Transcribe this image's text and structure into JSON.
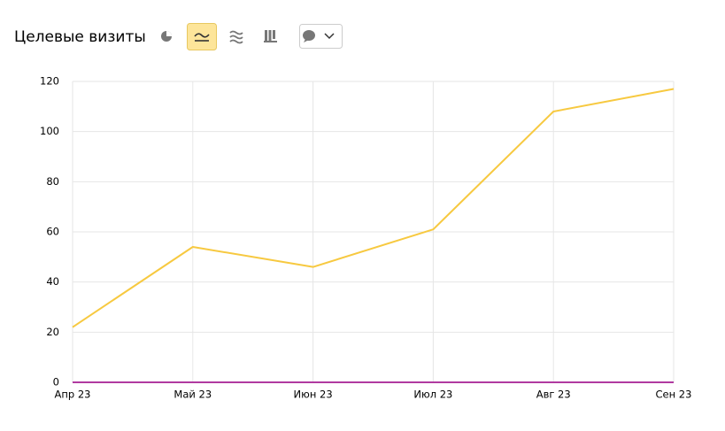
{
  "chart_data": {
    "type": "line",
    "title": "Целевые визиты",
    "categories": [
      "Апр 23",
      "Май 23",
      "Июн 23",
      "Июл 23",
      "Авг 23",
      "Сен 23"
    ],
    "series": [
      {
        "color": "#f7c940",
        "values": [
          22,
          54,
          46,
          61,
          108,
          117
        ]
      },
      {
        "color": "#b03aa0",
        "values": [
          0,
          0,
          0,
          0,
          0,
          0
        ]
      }
    ],
    "ylim": [
      0,
      120
    ],
    "yticks": [
      0,
      20,
      40,
      60,
      80,
      100,
      120
    ],
    "grid": true
  }
}
